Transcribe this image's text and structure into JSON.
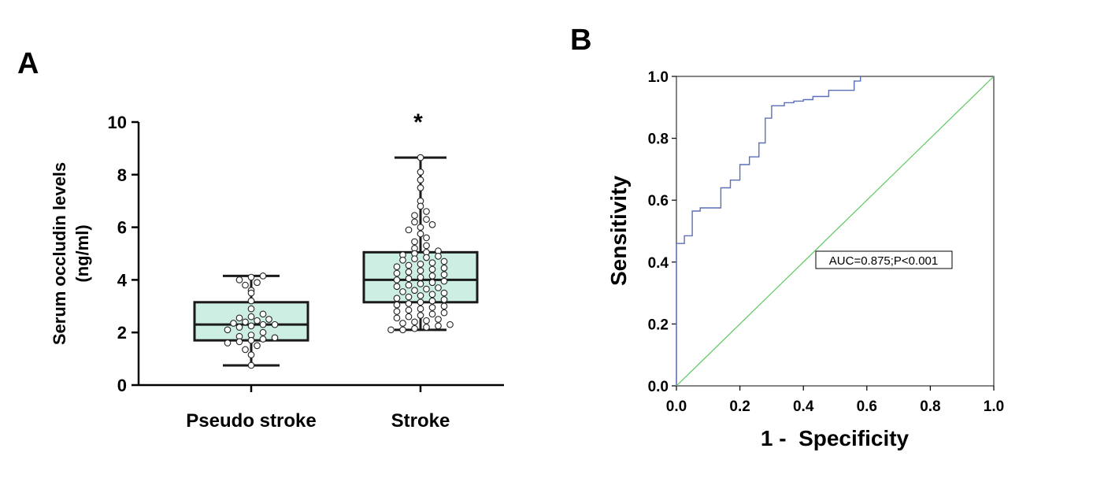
{
  "chart_data": [
    {
      "panel_label": "A",
      "type": "box",
      "ylabel_line1": "Serum occludin levels",
      "ylabel_line2": "(ng/ml)",
      "ylim": [
        0,
        10
      ],
      "yticks": [
        "0",
        "2",
        "4",
        "6",
        "8",
        "10"
      ],
      "categories": [
        "Pseudo stroke",
        "Stroke"
      ],
      "boxes": [
        {
          "name": "Pseudo stroke",
          "min": 0.75,
          "q1": 1.7,
          "median": 2.3,
          "q3": 3.15,
          "max": 4.15
        },
        {
          "name": "Stroke",
          "min": 2.1,
          "q1": 3.15,
          "median": 4.0,
          "q3": 5.05,
          "max": 8.65
        }
      ],
      "significance_marker": "*",
      "box_fill": "#cdeee3",
      "box_stroke": "#1a1a1a",
      "points": [
        {
          "group": "Pseudo stroke",
          "y": [
            0.75,
            1.15,
            1.35,
            1.5,
            1.6,
            1.65,
            1.7,
            1.75,
            1.8,
            1.85,
            1.9,
            2.0,
            2.1,
            2.2,
            2.25,
            2.3,
            2.3,
            2.35,
            2.4,
            2.45,
            2.5,
            2.55,
            2.6,
            2.7,
            2.9,
            3.2,
            3.5,
            3.6,
            3.8,
            3.9,
            4.0,
            4.1,
            4.15
          ]
        },
        {
          "group": "Stroke",
          "y": [
            2.1,
            2.1,
            2.15,
            2.2,
            2.25,
            2.3,
            2.35,
            2.4,
            2.45,
            2.5,
            2.55,
            2.6,
            2.65,
            2.7,
            2.75,
            2.8,
            2.85,
            2.9,
            2.95,
            3.0,
            3.05,
            3.1,
            3.15,
            3.2,
            3.25,
            3.3,
            3.35,
            3.4,
            3.45,
            3.5,
            3.55,
            3.6,
            3.65,
            3.7,
            3.75,
            3.8,
            3.85,
            3.9,
            3.95,
            4.0,
            4.05,
            4.1,
            4.15,
            4.2,
            4.25,
            4.3,
            4.35,
            4.4,
            4.45,
            4.5,
            4.55,
            4.6,
            4.65,
            4.7,
            4.75,
            4.8,
            4.85,
            4.9,
            4.95,
            5.0,
            5.05,
            5.1,
            5.2,
            5.3,
            5.45,
            5.6,
            5.75,
            5.9,
            6.0,
            6.1,
            6.2,
            6.3,
            6.45,
            6.6,
            6.8,
            7.0,
            7.5,
            7.8,
            8.1,
            8.65
          ]
        }
      ]
    },
    {
      "panel_label": "B",
      "type": "line",
      "xlabel": "1 -  Specificity",
      "ylabel": "Sensitivity",
      "xlim": [
        0,
        1
      ],
      "ylim": [
        0,
        1
      ],
      "xticks": [
        "0.0",
        "0.2",
        "0.4",
        "0.6",
        "0.8",
        "1.0"
      ],
      "yticks": [
        "0.0",
        "0.2",
        "0.4",
        "0.6",
        "0.8",
        "1.0"
      ],
      "annotation": "AUC=0.875;P<0.001",
      "series": [
        {
          "type": "step",
          "color": "#5b6fb8",
          "x": [
            0.0,
            0.0,
            0.025,
            0.025,
            0.05,
            0.05,
            0.075,
            0.075,
            0.14,
            0.14,
            0.17,
            0.17,
            0.2,
            0.2,
            0.23,
            0.23,
            0.26,
            0.26,
            0.28,
            0.28,
            0.3,
            0.3,
            0.34,
            0.34,
            0.37,
            0.37,
            0.4,
            0.4,
            0.43,
            0.43,
            0.48,
            0.48,
            0.56,
            0.56,
            0.58,
            0.58
          ],
          "y": [
            0.0,
            0.46,
            0.46,
            0.485,
            0.485,
            0.565,
            0.565,
            0.575,
            0.575,
            0.64,
            0.64,
            0.665,
            0.665,
            0.715,
            0.715,
            0.74,
            0.74,
            0.785,
            0.785,
            0.865,
            0.865,
            0.905,
            0.905,
            0.915,
            0.915,
            0.92,
            0.92,
            0.925,
            0.925,
            0.935,
            0.935,
            0.955,
            0.955,
            0.985,
            0.985,
            1.0
          ]
        },
        {
          "type": "reference",
          "color": "#5cc85c",
          "x": [
            0,
            1
          ],
          "y": [
            0,
            1
          ]
        }
      ]
    }
  ]
}
